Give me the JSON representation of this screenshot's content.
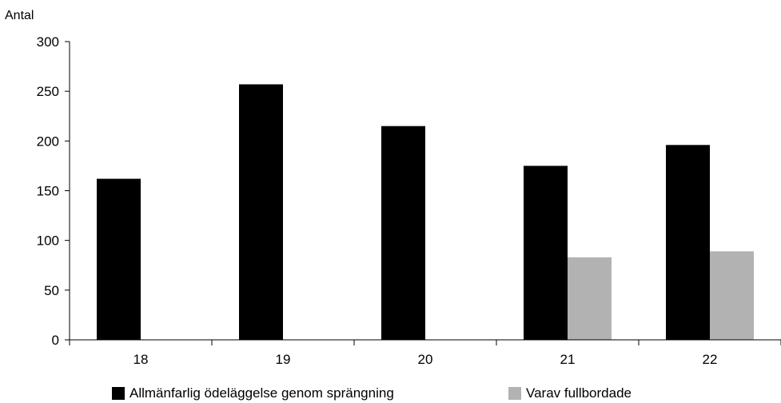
{
  "chart_data": {
    "type": "bar",
    "ylabel": "Antal",
    "categories": [
      "18",
      "19",
      "20",
      "21",
      "22"
    ],
    "series": [
      {
        "name": "Allmänfarlig ödeläggelse genom sprängning",
        "color": "#000000",
        "values": [
          162,
          257,
          215,
          175,
          196
        ]
      },
      {
        "name": "Varav fullbordade",
        "color": "#b2b2b2",
        "values": [
          null,
          null,
          null,
          83,
          89
        ]
      }
    ],
    "ylim": [
      0,
      300
    ],
    "yticks": [
      "0",
      "50",
      "100",
      "150",
      "200",
      "250",
      "300"
    ],
    "grid": false,
    "legend_position": "bottom"
  }
}
